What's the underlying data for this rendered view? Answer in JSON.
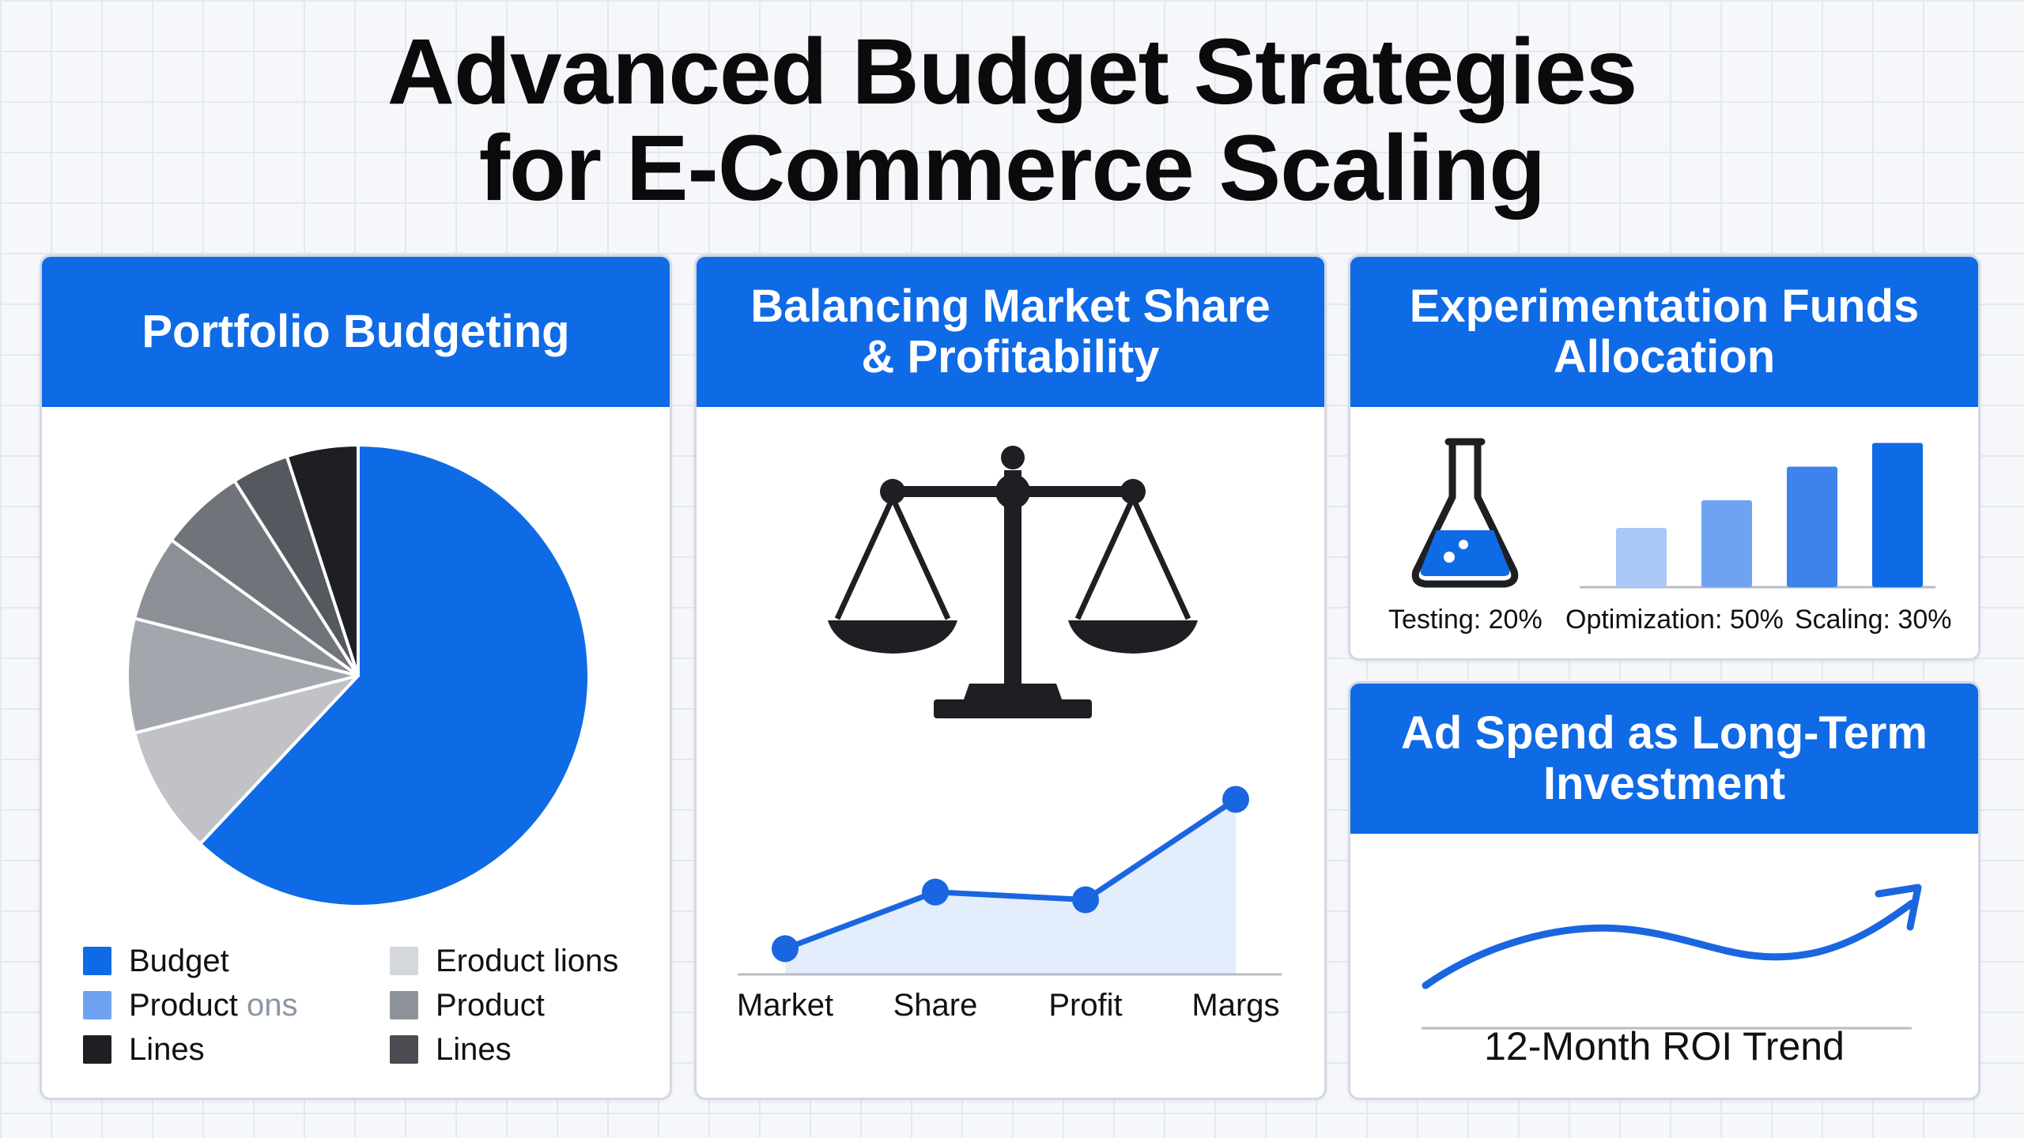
{
  "title_line1": "Advanced Budget Strategies",
  "title_line2": "for E-Commerce Scaling",
  "portfolio": {
    "heading": "Portfolio Budgeting",
    "legend": [
      {
        "label": "Budget",
        "label_faded": "",
        "color": "#0f6ae6"
      },
      {
        "label": "Eroduct lions",
        "label_faded": "",
        "color": "#d4d7dc"
      },
      {
        "label": "Product ",
        "label_faded": "ons",
        "color": "#6fa3f2"
      },
      {
        "label": "Product",
        "label_faded": "",
        "color": "#8e9299"
      },
      {
        "label": "Lines",
        "label_faded": "",
        "color": "#1e1f23"
      },
      {
        "label": "Lines",
        "label_faded": "",
        "color": "#4a4c52"
      }
    ],
    "pie_slices": [
      {
        "value": 62,
        "color": "#0f6ae6"
      },
      {
        "value": 9,
        "color": "#c0c2c7"
      },
      {
        "value": 8,
        "color": "#a3a6ac"
      },
      {
        "value": 6,
        "color": "#8c8f95"
      },
      {
        "value": 6,
        "color": "#707379"
      },
      {
        "value": 4,
        "color": "#55585e"
      },
      {
        "value": 5,
        "color": "#1e1f23"
      }
    ]
  },
  "market": {
    "heading": "Balancing Market Share\n& Profitability",
    "scale_icon": "balance-scale-icon",
    "chart_data": {
      "type": "area",
      "categories": [
        "Market",
        "Share",
        "Profit",
        "Margs"
      ],
      "values": [
        1,
        3.2,
        2.9,
        6.8
      ],
      "ylim": [
        0,
        7
      ],
      "color": "#1a66e0"
    }
  },
  "experiment": {
    "heading": "Experimentation Funds\nAllocation",
    "flask_icon": "flask-icon",
    "labels": [
      "Testing: 20%",
      "Optimization: 50%",
      "Scaling: 30%"
    ],
    "bars": [
      {
        "value": 3,
        "color": "#a9c8f6"
      },
      {
        "value": 4.4,
        "color": "#6fa3f2"
      },
      {
        "value": 6.1,
        "color": "#3e82ec"
      },
      {
        "value": 7.3,
        "color": "#0f6ae6"
      }
    ]
  },
  "roi": {
    "heading": "Ad Spend as Long-Term\nInvestment",
    "caption": "12-Month ROI Trend",
    "arrow_icon": "trend-arrow-icon"
  },
  "colors": {
    "accent": "#0f6ae6",
    "dark": "#111111"
  }
}
